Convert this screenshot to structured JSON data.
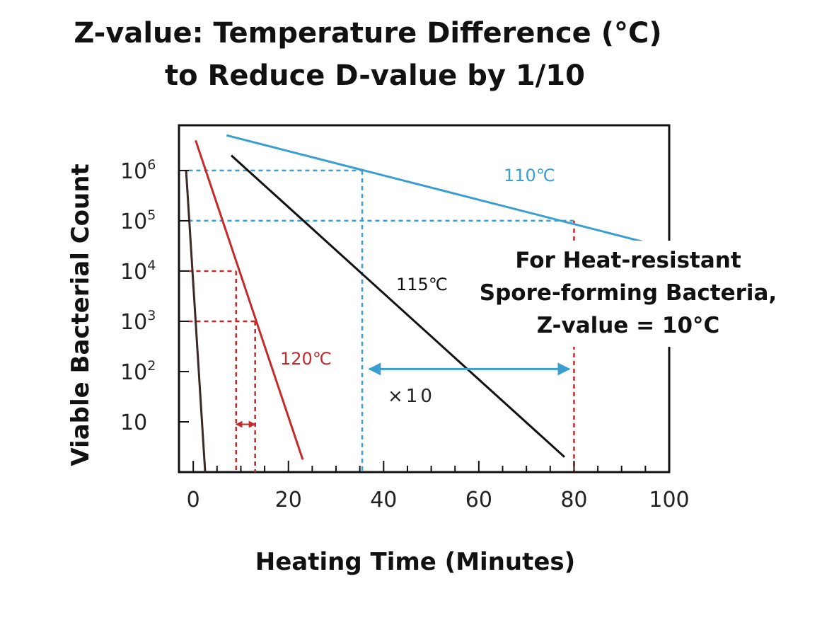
{
  "colors": {
    "s110": "#3a9fd0",
    "s115": "#111111",
    "s120": "#c42a2a",
    "guide_blue": "#3a9fd0",
    "guide_red": "#c42a2a"
  },
  "chart_data": {
    "type": "line",
    "title_line1": "Z-value: Temperature Difference (°C)",
    "title_line2": "to Reduce D-value by 1/10",
    "xlabel": "Heating Time (Minutes)",
    "ylabel": "Viable Bacterial Count",
    "xlim": [
      -3,
      100
    ],
    "ylim_log10": [
      0,
      6.9
    ],
    "y_scale": "log",
    "grid": false,
    "x_ticks": [
      0,
      20,
      40,
      60,
      80,
      100
    ],
    "x_tick_labels": [
      "0",
      "20",
      "40",
      "60",
      "80",
      "100"
    ],
    "y_ticks": [
      {
        "value": 6,
        "base": "10",
        "exp": "6"
      },
      {
        "value": 5,
        "base": "10",
        "exp": "5"
      },
      {
        "value": 4,
        "base": "10",
        "exp": "4"
      },
      {
        "value": 3,
        "base": "10",
        "exp": "3"
      },
      {
        "value": 2,
        "base": "10",
        "exp": "2"
      },
      {
        "value": 1,
        "base": "10",
        "exp": ""
      }
    ],
    "series": [
      {
        "name": "110℃",
        "x": [
          7,
          100
        ],
        "y_log10": [
          6.7,
          4.45
        ]
      },
      {
        "name": "115℃",
        "x": [
          8,
          78
        ],
        "y_log10": [
          6.3,
          0.3
        ]
      },
      {
        "name": "120℃",
        "x": [
          0.5,
          23
        ],
        "y_log10": [
          6.6,
          0.25
        ]
      },
      {
        "name": "",
        "x": [
          -1.5,
          2.5
        ],
        "y_log10": [
          6.0,
          0.0
        ]
      }
    ],
    "guides": [
      {
        "color": "blue",
        "x1": -1,
        "y1": 6,
        "x2": 35.5,
        "y2": 6
      },
      {
        "color": "blue",
        "x1": 35.5,
        "y1": 6,
        "x2": 35.5,
        "y2": 0
      },
      {
        "color": "blue",
        "x1": -1,
        "y1": 5,
        "x2": 80,
        "y2": 5
      },
      {
        "color": "red",
        "x1": 80,
        "y1": 5,
        "x2": 80,
        "y2": 0
      },
      {
        "color": "red",
        "x1": -1,
        "y1": 4,
        "x2": 9,
        "y2": 4
      },
      {
        "color": "red",
        "x1": 9,
        "y1": 4,
        "x2": 9,
        "y2": 0
      },
      {
        "color": "red",
        "x1": -1,
        "y1": 3,
        "x2": 13,
        "y2": 3
      },
      {
        "color": "red",
        "x1": 13,
        "y1": 3,
        "x2": 13,
        "y2": 0
      }
    ],
    "span_arrows": [
      {
        "color": "blue",
        "x1": 37,
        "x2": 79,
        "y_log10": 2.05
      },
      {
        "color": "red",
        "x1": 9,
        "x2": 13,
        "y_log10": 0.95
      }
    ],
    "annotations": {
      "label_110": "110℃",
      "label_115": "115℃",
      "label_120": "120℃",
      "factor": "×10",
      "note_line1": "For Heat-resistant",
      "note_line2": "Spore-forming Bacteria,",
      "note_line3": "Z-value = 10°C"
    }
  }
}
